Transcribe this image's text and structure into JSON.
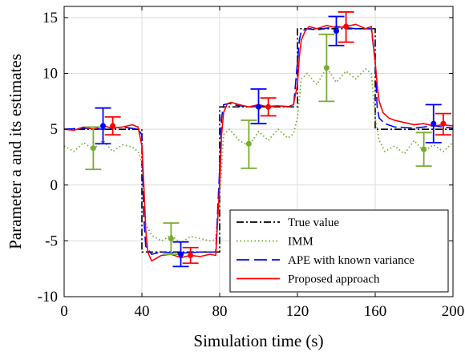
{
  "chart_data": {
    "type": "line",
    "xlabel": "Simulation time (s)",
    "ylabel": "Parameter a and its estimates",
    "xlim": [
      0,
      200
    ],
    "ylim": [
      -10,
      16
    ],
    "xticks": [
      0,
      40,
      80,
      120,
      160,
      200
    ],
    "yticks": [
      -10,
      -5,
      0,
      5,
      10,
      15
    ],
    "xtick_labels": [
      "0",
      "40",
      "80",
      "120",
      "160",
      "200"
    ],
    "ytick_labels": [
      "-10",
      "-5",
      "0",
      "5",
      "10",
      "15"
    ],
    "grid": true,
    "legend_position": "bottom-right",
    "series": [
      {
        "name": "True value",
        "style": "dash-dot",
        "color": "#000000",
        "x": [
          0,
          40,
          40,
          80,
          80,
          120,
          120,
          160,
          160,
          200
        ],
        "y": [
          5,
          5,
          -6,
          -6,
          7,
          7,
          14,
          14,
          5,
          5
        ]
      },
      {
        "name": "IMM",
        "style": "dotted",
        "color": "#77ac30",
        "x": [
          0,
          5,
          10,
          15,
          20,
          25,
          30,
          35,
          38,
          40,
          42,
          45,
          50,
          55,
          60,
          65,
          70,
          75,
          78,
          80,
          82,
          85,
          90,
          95,
          100,
          105,
          110,
          115,
          118,
          120,
          122,
          125,
          130,
          135,
          140,
          145,
          150,
          155,
          158,
          160,
          162,
          165,
          170,
          175,
          180,
          185,
          190,
          195,
          200
        ],
        "y": [
          3.5,
          3.0,
          3.8,
          3.2,
          4.0,
          3.0,
          3.6,
          3.4,
          3.0,
          2.0,
          -3.5,
          -4.5,
          -5.0,
          -4.5,
          -5.2,
          -4.6,
          -4.8,
          -5.0,
          -4.9,
          -1.0,
          4.5,
          5.0,
          4.0,
          3.5,
          4.8,
          4.0,
          5.0,
          4.2,
          4.6,
          6.0,
          9.5,
          10.0,
          9.0,
          10.5,
          9.2,
          10.2,
          9.5,
          10.4,
          10.0,
          6.0,
          4.0,
          3.0,
          3.5,
          2.8,
          4.0,
          3.0,
          3.6,
          3.0,
          3.8
        ]
      },
      {
        "name": "APE with known variance",
        "style": "dashed",
        "color": "#0000ff",
        "x": [
          0,
          10,
          20,
          30,
          38,
          40,
          41,
          42,
          45,
          50,
          60,
          70,
          78,
          80,
          81,
          82,
          85,
          90,
          100,
          110,
          118,
          120,
          121,
          122,
          125,
          130,
          140,
          150,
          158,
          160,
          161,
          162,
          165,
          170,
          180,
          190,
          200
        ],
        "y": [
          5.0,
          5.1,
          5.0,
          5.2,
          5.0,
          4.5,
          -3.0,
          -5.5,
          -6.2,
          -6.0,
          -6.1,
          -6.0,
          -6.0,
          1.5,
          6.0,
          7.2,
          7.3,
          7.1,
          7.0,
          7.1,
          7.0,
          11.0,
          13.0,
          13.8,
          14.0,
          13.9,
          14.2,
          14.0,
          14.0,
          11.0,
          7.0,
          6.0,
          5.5,
          5.2,
          5.1,
          5.3,
          5.1
        ]
      },
      {
        "name": "Proposed approach",
        "style": "solid",
        "color": "#ff0000",
        "x": [
          0,
          5,
          10,
          15,
          20,
          25,
          30,
          35,
          38,
          40,
          41,
          42,
          43,
          45,
          50,
          55,
          60,
          65,
          70,
          75,
          78,
          80,
          81,
          82,
          84,
          86,
          90,
          95,
          100,
          105,
          110,
          115,
          118,
          120,
          121,
          122,
          124,
          126,
          130,
          135,
          140,
          145,
          150,
          155,
          158,
          160,
          161,
          162,
          164,
          167,
          170,
          175,
          180,
          185,
          190,
          195,
          200
        ],
        "y": [
          5.0,
          4.9,
          5.2,
          5.0,
          5.3,
          5.1,
          5.2,
          5.4,
          5.2,
          3.5,
          0.0,
          -4.0,
          -6.0,
          -6.8,
          -6.3,
          -6.2,
          -6.5,
          -6.3,
          -6.4,
          -6.2,
          -6.3,
          0.0,
          4.5,
          6.5,
          7.3,
          7.4,
          7.2,
          7.0,
          7.2,
          7.0,
          7.1,
          7.0,
          7.2,
          9.0,
          11.5,
          13.0,
          13.8,
          14.2,
          14.0,
          14.3,
          14.1,
          14.2,
          14.4,
          14.0,
          14.2,
          11.0,
          9.0,
          7.5,
          6.5,
          6.0,
          5.8,
          5.6,
          5.4,
          5.5,
          5.3,
          5.4,
          5.3
        ]
      }
    ],
    "error_bars": [
      {
        "series": "IMM",
        "x": 15,
        "y": 3.3,
        "low": 1.4,
        "high": 5.2,
        "color": "#77ac30"
      },
      {
        "series": "IMM",
        "x": 55,
        "y": -4.8,
        "low": -6.2,
        "high": -3.4,
        "color": "#77ac30"
      },
      {
        "series": "IMM",
        "x": 95,
        "y": 3.7,
        "low": 1.5,
        "high": 5.8,
        "color": "#77ac30"
      },
      {
        "series": "IMM",
        "x": 135,
        "y": 10.5,
        "low": 7.5,
        "high": 13.5,
        "color": "#77ac30"
      },
      {
        "series": "IMM",
        "x": 185,
        "y": 3.2,
        "low": 1.7,
        "high": 4.7,
        "color": "#77ac30"
      },
      {
        "series": "APE with known variance",
        "x": 20,
        "y": 5.3,
        "low": 3.7,
        "high": 6.9,
        "color": "#0000ff"
      },
      {
        "series": "APE with known variance",
        "x": 60,
        "y": -6.2,
        "low": -7.3,
        "high": -5.1,
        "color": "#0000ff"
      },
      {
        "series": "APE with known variance",
        "x": 100,
        "y": 7.0,
        "low": 5.5,
        "high": 8.6,
        "color": "#0000ff"
      },
      {
        "series": "APE with known variance",
        "x": 140,
        "y": 13.8,
        "low": 12.5,
        "high": 15.1,
        "color": "#0000ff"
      },
      {
        "series": "APE with known variance",
        "x": 190,
        "y": 5.5,
        "low": 3.8,
        "high": 7.2,
        "color": "#0000ff"
      },
      {
        "series": "Proposed approach",
        "x": 25,
        "y": 5.3,
        "low": 4.5,
        "high": 6.1,
        "color": "#ff0000"
      },
      {
        "series": "Proposed approach",
        "x": 65,
        "y": -6.3,
        "low": -7.0,
        "high": -5.6,
        "color": "#ff0000"
      },
      {
        "series": "Proposed approach",
        "x": 105,
        "y": 7.0,
        "low": 6.2,
        "high": 7.8,
        "color": "#ff0000"
      },
      {
        "series": "Proposed approach",
        "x": 145,
        "y": 14.2,
        "low": 12.8,
        "high": 15.5,
        "color": "#ff0000"
      },
      {
        "series": "Proposed approach",
        "x": 195,
        "y": 5.5,
        "low": 4.5,
        "high": 6.4,
        "color": "#ff0000"
      }
    ]
  }
}
